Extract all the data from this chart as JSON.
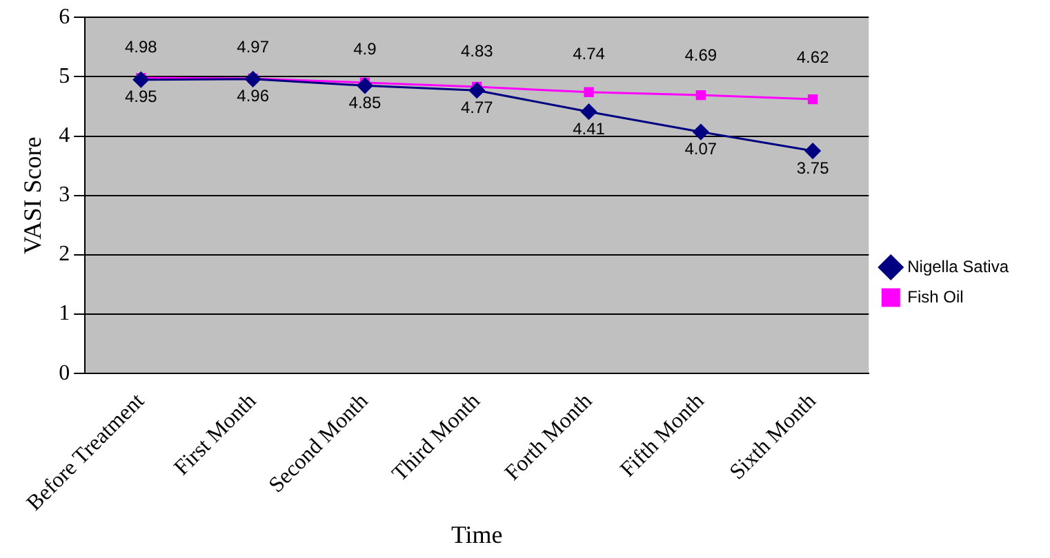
{
  "chart_data": {
    "type": "line",
    "xlabel": "Time",
    "ylabel": "VASI Score",
    "categories": [
      "Before Treatment",
      "First Month",
      "Second Month",
      "Third Month",
      "Forth Month",
      "Fifth Month",
      "Sixth Month"
    ],
    "series": [
      {
        "name": "Nigella Sativa",
        "color": "#000080",
        "marker": "diamond",
        "values": [
          4.95,
          4.96,
          4.85,
          4.77,
          4.41,
          4.07,
          3.75
        ]
      },
      {
        "name": "Fish Oil",
        "color": "#ff00ff",
        "marker": "square",
        "values": [
          4.98,
          4.97,
          4.9,
          4.83,
          4.74,
          4.69,
          4.62
        ]
      }
    ],
    "ylim": [
      0,
      6
    ],
    "yticks": [
      0,
      1,
      2,
      3,
      4,
      5,
      6
    ],
    "grid": "y",
    "legend": "right",
    "data_labels": true,
    "line_style": "solid"
  }
}
